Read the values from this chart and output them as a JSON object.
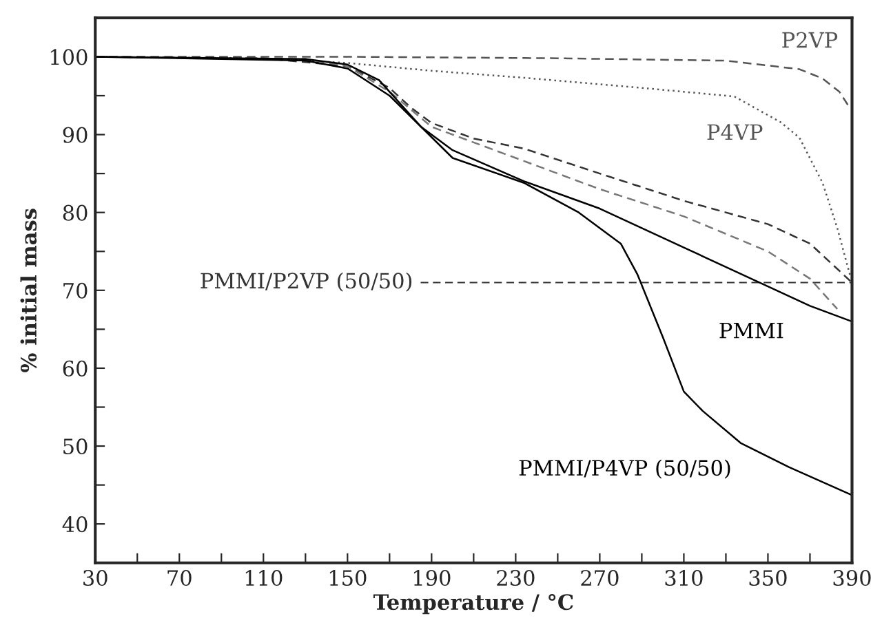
{
  "chart_data": {
    "type": "line",
    "xlabel": "Temperature / °C",
    "ylabel": "% initial mass",
    "xlim": [
      30,
      390
    ],
    "ylim": [
      35,
      105
    ],
    "xticks": [
      30,
      {
        "value": 50,
        "label": null
      },
      70,
      {
        "value": 90,
        "label": null
      },
      110,
      {
        "value": 130,
        "label": null
      },
      150,
      {
        "value": 170,
        "label": null
      },
      190,
      {
        "value": 210,
        "label": null
      },
      230,
      {
        "value": 250,
        "label": null
      },
      270,
      {
        "value": 290,
        "label": null
      },
      310,
      {
        "value": 330,
        "label": null
      },
      350,
      {
        "value": 370,
        "label": null
      },
      390
    ],
    "yticks": [
      40,
      {
        "value": 45,
        "label": null
      },
      50,
      {
        "value": 55,
        "label": null
      },
      60,
      {
        "value": 65,
        "label": null
      },
      70,
      {
        "value": 75,
        "label": null
      },
      80,
      {
        "value": 85,
        "label": null
      },
      90,
      {
        "value": 95,
        "label": null
      },
      100
    ],
    "grid": false,
    "legend": false,
    "marker": "none",
    "series": [
      {
        "name": "P2VP",
        "color": "#555555",
        "line_style": "dashed",
        "x": [
          30,
          150,
          250,
          330,
          365,
          376,
          384,
          389
        ],
        "values": [
          100,
          100,
          99.8,
          99.5,
          98.4,
          97.2,
          95.5,
          93.4
        ]
      },
      {
        "name": "P4VP",
        "color": "#555555",
        "line_style": "dotted",
        "x": [
          30,
          110,
          150,
          190,
          234,
          290,
          334,
          356,
          365,
          376,
          383,
          389
        ],
        "values": [
          100,
          99.8,
          99.2,
          98.2,
          97.3,
          96,
          94.9,
          91.6,
          89.6,
          83.8,
          78,
          72
        ]
      },
      {
        "name": "PMMI/P2VP (50/50)",
        "color": "#333333",
        "line_style": "dashed",
        "x": [
          30,
          110,
          150,
          170,
          180,
          190,
          210,
          234,
          270,
          310,
          350,
          370,
          390
        ],
        "values": [
          100,
          99.8,
          98.8,
          96,
          93.5,
          91.5,
          89.5,
          88.2,
          85,
          81.5,
          78.5,
          76,
          71
        ]
      },
      {
        "color": "#777777",
        "line_style": "dashed",
        "x": [
          30,
          130,
          150,
          170,
          190,
          230,
          270,
          310,
          350,
          370,
          383
        ],
        "values": [
          100,
          99.7,
          98.8,
          95.5,
          91,
          87,
          83,
          79.5,
          75,
          71.5,
          67.6
        ]
      },
      {
        "name": "PMMI",
        "color": "#000000",
        "line_style": "solid",
        "x": [
          30,
          130,
          150,
          165,
          175,
          185,
          200,
          234,
          270,
          310,
          350,
          370,
          390
        ],
        "values": [
          100,
          99.7,
          99,
          97,
          94,
          91,
          88,
          84,
          80.5,
          75.5,
          70.5,
          68,
          66
        ]
      },
      {
        "name": "PMMI/P4VP (50/50)",
        "color": "#000000",
        "line_style": "solid",
        "x": [
          30,
          130,
          150,
          170,
          185,
          200,
          234,
          260,
          280,
          288,
          300,
          310,
          319,
          337,
          360,
          390
        ],
        "values": [
          100,
          99.5,
          98.5,
          95,
          91,
          87,
          83.8,
          80,
          76,
          72,
          64,
          57,
          54.5,
          50.4,
          47.3,
          43.7
        ]
      }
    ]
  }
}
